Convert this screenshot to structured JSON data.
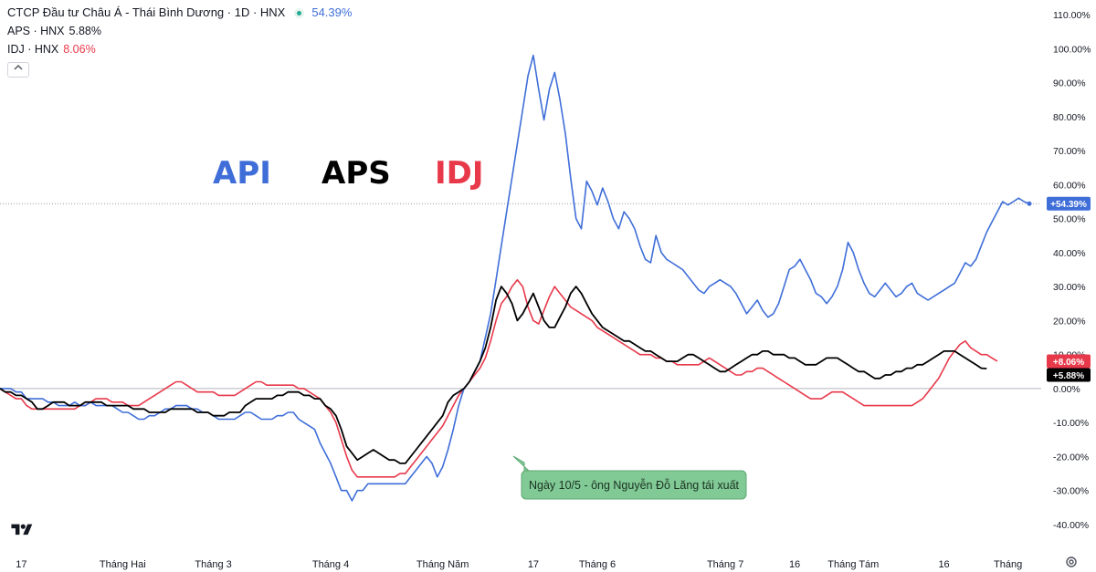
{
  "header": {
    "title": "CTCP Đầu tư Châu Á - Thái Bình Dương · 1D · HNX",
    "title_value": "54.39%",
    "series2_label": "APS · HNX",
    "series2_value": "5.88%",
    "series3_label": "IDJ · HNX",
    "series3_value": "8.06%"
  },
  "overlay": {
    "label_api": "API",
    "label_aps": "APS",
    "label_idj": "IDJ",
    "annotation": "Ngày 10/5 - ông Nguyễn Đỗ Lăng tái xuất"
  },
  "colors": {
    "api": "#3f6ed8",
    "aps": "#000000",
    "idj": "#e8394b",
    "annotation_bg": "#81c995"
  },
  "icons": {
    "logo": "tradingview-logo-icon",
    "settings": "gear-icon",
    "collapse": "chevron-up-icon"
  },
  "chart_data": {
    "type": "line",
    "ylim": [
      -40,
      110
    ],
    "y_ticks": [
      "110.00%",
      "100.00%",
      "90.00%",
      "80.00%",
      "70.00%",
      "60.00%",
      "50.00%",
      "40.00%",
      "30.00%",
      "20.00%",
      "10.00%",
      "0.00%",
      "-10.00%",
      "-20.00%",
      "-30.00%",
      "-40.00%"
    ],
    "y_tick_values": [
      110,
      100,
      90,
      80,
      70,
      60,
      50,
      40,
      30,
      20,
      10,
      0,
      -10,
      -20,
      -30,
      -40
    ],
    "x_ticks": [
      "17",
      "Tháng Hai",
      "Tháng 3",
      "Tháng 4",
      "Tháng Năm",
      "17",
      "Tháng 6",
      "Tháng 7",
      "16",
      "Tháng Tám",
      "16",
      "Tháng"
    ],
    "x_tick_index": [
      4,
      23,
      40,
      62,
      83,
      100,
      112,
      136,
      149,
      160,
      177,
      189
    ],
    "last_value_labels": [
      {
        "series": "API",
        "text": "+54.39%",
        "value": 54.39
      },
      {
        "series": "IDJ",
        "text": "+8.06%",
        "value": 8.06
      },
      {
        "series": "APS",
        "text": "+5.88%",
        "value": 5.88
      }
    ],
    "series": [
      {
        "name": "API",
        "values": [
          0,
          0,
          0,
          -1,
          -1,
          -3,
          -3,
          -3,
          -3,
          -4,
          -4,
          -5,
          -5,
          -5,
          -4,
          -5,
          -5,
          -4,
          -5,
          -5,
          -5,
          -5,
          -6,
          -7,
          -7,
          -8,
          -9,
          -9,
          -8,
          -8,
          -7,
          -6,
          -6,
          -5,
          -5,
          -5,
          -6,
          -6,
          -7,
          -7,
          -8,
          -9,
          -9,
          -9,
          -9,
          -8,
          -7,
          -7,
          -8,
          -9,
          -9,
          -9,
          -8,
          -8,
          -7,
          -7,
          -9,
          -10,
          -11,
          -12,
          -16,
          -19,
          -22,
          -26,
          -30,
          -30,
          -33,
          -30,
          -30,
          -28,
          -28,
          -28,
          -28,
          -28,
          -28,
          -28,
          -28,
          -26,
          -24,
          -22,
          -20,
          -22,
          -26,
          -23,
          -18,
          -12,
          -5,
          0,
          2,
          5,
          8,
          15,
          22,
          32,
          42,
          52,
          62,
          72,
          82,
          92,
          98,
          88,
          79,
          88,
          93,
          85,
          75,
          62,
          50,
          47,
          61,
          58,
          54,
          59,
          55,
          50,
          47,
          52,
          50,
          47,
          42,
          38,
          37,
          45,
          40,
          38,
          37,
          36,
          35,
          33,
          31,
          29,
          28,
          30,
          31,
          32,
          31,
          30,
          28,
          25,
          22,
          24,
          26,
          23,
          21,
          22,
          25,
          30,
          35,
          36,
          38,
          35,
          32,
          28,
          27,
          25,
          27,
          30,
          35,
          43,
          40,
          35,
          31,
          28,
          27,
          29,
          31,
          29,
          27,
          28,
          30,
          31,
          28,
          27,
          26,
          27,
          28,
          29,
          30,
          31,
          34,
          37,
          36,
          38,
          42,
          46,
          49,
          52,
          55,
          54,
          55,
          56,
          55,
          54.39
        ]
      },
      {
        "name": "APS",
        "values": [
          0,
          -1,
          -1,
          -2,
          -2,
          -3,
          -4,
          -6,
          -6,
          -5,
          -4,
          -4,
          -4,
          -5,
          -5,
          -5,
          -4,
          -4,
          -4,
          -4,
          -5,
          -5,
          -5,
          -5,
          -5,
          -6,
          -6,
          -6,
          -7,
          -7,
          -7,
          -7,
          -6,
          -6,
          -6,
          -6,
          -6,
          -7,
          -7,
          -7,
          -8,
          -8,
          -8,
          -7,
          -7,
          -7,
          -5,
          -4,
          -3,
          -3,
          -3,
          -3,
          -2,
          -2,
          -1,
          -1,
          -1,
          -2,
          -2,
          -3,
          -3,
          -5,
          -6,
          -8,
          -12,
          -17,
          -19,
          -21,
          -20,
          -19,
          -18,
          -19,
          -20,
          -21,
          -21,
          -22,
          -22,
          -20,
          -18,
          -16,
          -14,
          -12,
          -10,
          -8,
          -4,
          -2,
          -1,
          0,
          2,
          5,
          8,
          12,
          18,
          26,
          30,
          28,
          25,
          20,
          22,
          25,
          28,
          24,
          20,
          18,
          18,
          21,
          24,
          28,
          30,
          28,
          25,
          22,
          20,
          18,
          17,
          16,
          15,
          14,
          14,
          13,
          12,
          11,
          11,
          10,
          9,
          8,
          8,
          8,
          9,
          10,
          10,
          9,
          8,
          7,
          6,
          5,
          5,
          6,
          7,
          8,
          9,
          10,
          10,
          11,
          11,
          10,
          10,
          10,
          9,
          9,
          8,
          7,
          7,
          7,
          8,
          9,
          9,
          9,
          8,
          7,
          6,
          5,
          5,
          4,
          3,
          3,
          4,
          4,
          5,
          5,
          6,
          6,
          7,
          7,
          8,
          9,
          10,
          11,
          11,
          11,
          10,
          9,
          8,
          7,
          6,
          5.88
        ]
      },
      {
        "name": "IDJ",
        "values": [
          0,
          -1,
          -2,
          -3,
          -3,
          -5,
          -6,
          -6,
          -6,
          -6,
          -6,
          -6,
          -6,
          -6,
          -6,
          -5,
          -5,
          -4,
          -3,
          -3,
          -3,
          -4,
          -4,
          -4,
          -5,
          -5,
          -5,
          -4,
          -3,
          -2,
          -1,
          0,
          1,
          2,
          2,
          1,
          0,
          -1,
          -1,
          -1,
          -1,
          -2,
          -2,
          -2,
          -2,
          -1,
          0,
          1,
          2,
          2,
          1,
          1,
          1,
          1,
          1,
          1,
          0,
          0,
          -1,
          -2,
          -3,
          -5,
          -7,
          -10,
          -15,
          -20,
          -24,
          -26,
          -26,
          -26,
          -26,
          -26,
          -26,
          -26,
          -26,
          -25,
          -25,
          -23,
          -21,
          -19,
          -17,
          -15,
          -13,
          -11,
          -8,
          -5,
          -2,
          0,
          2,
          4,
          6,
          9,
          14,
          20,
          25,
          27,
          30,
          32,
          30,
          24,
          20,
          19,
          23,
          27,
          30,
          28,
          26,
          24,
          23,
          22,
          21,
          20,
          18,
          17,
          16,
          15,
          14,
          13,
          12,
          11,
          10,
          10,
          10,
          9,
          9,
          8,
          8,
          7,
          7,
          7,
          7,
          7,
          8,
          9,
          8,
          7,
          6,
          5,
          4,
          4,
          5,
          5,
          6,
          6,
          5,
          4,
          3,
          2,
          1,
          0,
          -1,
          -2,
          -3,
          -3,
          -3,
          -2,
          -1,
          -1,
          -1,
          -2,
          -3,
          -4,
          -5,
          -5,
          -5,
          -5,
          -5,
          -5,
          -5,
          -5,
          -5,
          -5,
          -4,
          -3,
          -1,
          1,
          3,
          6,
          9,
          11,
          13,
          14,
          12,
          11,
          10,
          10,
          9,
          8.06
        ]
      }
    ]
  }
}
